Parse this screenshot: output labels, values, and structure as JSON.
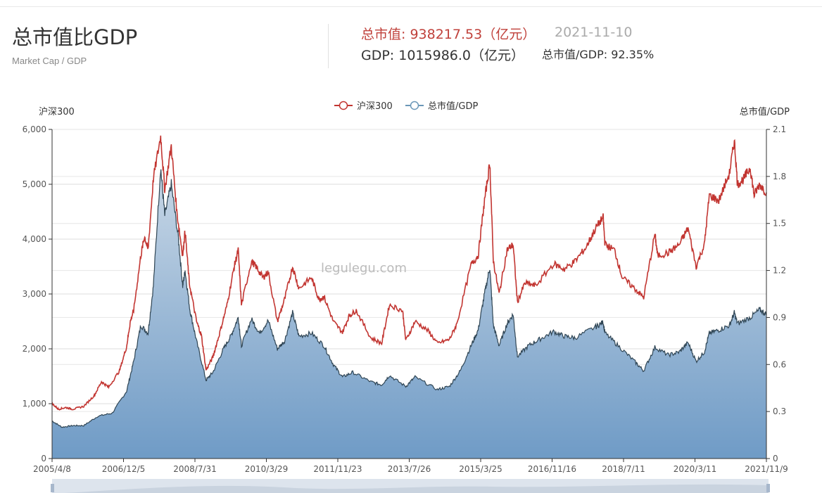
{
  "header": {
    "title": "总市值比GDP",
    "subtitle": "Market Cap / GDP",
    "market_cap": "总市值: 938217.53（亿元）",
    "date": "2021-11-10",
    "gdp": "GDP: 1015986.0（亿元）",
    "ratio": "总市值/GDP: 92.35%"
  },
  "watermark": "legulegu.com",
  "colors": {
    "hs300": "#c23531",
    "ratio_line": "#2f4554",
    "ratio_fill_top": "#c8d7e6",
    "ratio_fill_bottom": "#6f9bc6",
    "legend_ratio": "#6b97b8"
  },
  "chart_data": {
    "type": "line",
    "x_start": "2005-04-08",
    "x_end": "2021-11-09",
    "x_tick_labels": [
      "2005/4/8",
      "2006/12/5",
      "2008/7/31",
      "2010/3/29",
      "2011/11/23",
      "2013/7/26",
      "2015/3/25",
      "2016/11/16",
      "2018/7/11",
      "2020/3/11",
      "2021/11/9"
    ],
    "y_left": {
      "label": "沪深300",
      "min": 0,
      "max": 6000,
      "ticks": [
        "0",
        "1,000",
        "2,000",
        "3,000",
        "4,000",
        "5,000",
        "6,000"
      ]
    },
    "y_right": {
      "label": "总市值/GDP",
      "min": 0,
      "max": 2.1,
      "ticks": [
        "0",
        "0.3",
        "0.6",
        "0.9",
        "1.2",
        "1.5",
        "1.8",
        "2.1"
      ]
    },
    "grid": true,
    "legend_position": "top-center",
    "series": [
      {
        "name": "沪深300",
        "axis": "left",
        "style": "line",
        "points": [
          [
            "2005-04-08",
            1000
          ],
          [
            "2005-06-01",
            900
          ],
          [
            "2005-08-01",
            930
          ],
          [
            "2005-10-01",
            900
          ],
          [
            "2006-01-01",
            950
          ],
          [
            "2006-04-01",
            1150
          ],
          [
            "2006-06-01",
            1400
          ],
          [
            "2006-08-01",
            1300
          ],
          [
            "2006-11-01",
            1600
          ],
          [
            "2006-12-31",
            2040
          ],
          [
            "2007-02-01",
            2500
          ],
          [
            "2007-03-01",
            2700
          ],
          [
            "2007-05-01",
            3700
          ],
          [
            "2007-06-01",
            4050
          ],
          [
            "2007-07-01",
            3800
          ],
          [
            "2007-08-15",
            5100
          ],
          [
            "2007-10-16",
            5877
          ],
          [
            "2007-11-20",
            4900
          ],
          [
            "2008-01-14",
            5700
          ],
          [
            "2008-03-01",
            4500
          ],
          [
            "2008-04-20",
            3700
          ],
          [
            "2008-05-10",
            4150
          ],
          [
            "2008-06-15",
            3200
          ],
          [
            "2008-08-15",
            2500
          ],
          [
            "2008-09-25",
            2250
          ],
          [
            "2008-11-04",
            1610
          ],
          [
            "2009-01-01",
            1850
          ],
          [
            "2009-03-01",
            2300
          ],
          [
            "2009-05-01",
            2800
          ],
          [
            "2009-07-01",
            3500
          ],
          [
            "2009-08-04",
            3800
          ],
          [
            "2009-08-31",
            2800
          ],
          [
            "2009-11-24",
            3600
          ],
          [
            "2010-01-01",
            3500
          ],
          [
            "2010-03-01",
            3300
          ],
          [
            "2010-04-15",
            3400
          ],
          [
            "2010-07-02",
            2500
          ],
          [
            "2010-09-01",
            2900
          ],
          [
            "2010-11-08",
            3500
          ],
          [
            "2011-01-01",
            3100
          ],
          [
            "2011-04-18",
            3300
          ],
          [
            "2011-06-20",
            2900
          ],
          [
            "2011-08-01",
            2950
          ],
          [
            "2011-10-20",
            2500
          ],
          [
            "2012-01-05",
            2300
          ],
          [
            "2012-03-01",
            2600
          ],
          [
            "2012-05-01",
            2700
          ],
          [
            "2012-09-01",
            2200
          ],
          [
            "2012-12-03",
            2100
          ],
          [
            "2013-02-06",
            2800
          ],
          [
            "2013-05-29",
            2700
          ],
          [
            "2013-06-25",
            2150
          ],
          [
            "2013-09-12",
            2500
          ],
          [
            "2013-12-31",
            2330
          ],
          [
            "2014-03-20",
            2100
          ],
          [
            "2014-06-30",
            2170
          ],
          [
            "2014-09-01",
            2450
          ],
          [
            "2014-12-31",
            3530
          ],
          [
            "2015-03-01",
            3700
          ],
          [
            "2015-04-24",
            4700
          ],
          [
            "2015-06-08",
            5380
          ],
          [
            "2015-07-08",
            3600
          ],
          [
            "2015-08-26",
            3000
          ],
          [
            "2015-11-01",
            3800
          ],
          [
            "2015-12-23",
            3900
          ],
          [
            "2016-01-28",
            2850
          ],
          [
            "2016-04-01",
            3200
          ],
          [
            "2016-07-01",
            3150
          ],
          [
            "2016-11-29",
            3550
          ],
          [
            "2017-03-01",
            3450
          ],
          [
            "2017-06-01",
            3600
          ],
          [
            "2017-09-01",
            3850
          ],
          [
            "2017-11-22",
            4200
          ],
          [
            "2018-01-24",
            4400
          ],
          [
            "2018-02-09",
            3900
          ],
          [
            "2018-05-01",
            3800
          ],
          [
            "2018-07-05",
            3300
          ],
          [
            "2018-10-18",
            3100
          ],
          [
            "2019-01-03",
            2935
          ],
          [
            "2019-04-08",
            4100
          ],
          [
            "2019-05-01",
            3700
          ],
          [
            "2019-08-01",
            3750
          ],
          [
            "2019-11-01",
            3900
          ],
          [
            "2020-01-14",
            4200
          ],
          [
            "2020-03-23",
            3500
          ],
          [
            "2020-06-01",
            3900
          ],
          [
            "2020-07-13",
            4800
          ],
          [
            "2020-10-01",
            4700
          ],
          [
            "2020-12-31",
            5200
          ],
          [
            "2021-02-10",
            5800
          ],
          [
            "2021-03-09",
            5000
          ],
          [
            "2021-05-01",
            5100
          ],
          [
            "2021-06-25",
            5300
          ],
          [
            "2021-07-28",
            4800
          ],
          [
            "2021-09-13",
            5000
          ],
          [
            "2021-11-09",
            4850
          ]
        ]
      },
      {
        "name": "总市值/GDP",
        "axis": "right",
        "style": "area",
        "points": [
          [
            "2005-04-08",
            0.24
          ],
          [
            "2005-07-01",
            0.2
          ],
          [
            "2005-10-01",
            0.21
          ],
          [
            "2006-01-01",
            0.21
          ],
          [
            "2006-05-01",
            0.27
          ],
          [
            "2006-09-01",
            0.29
          ],
          [
            "2006-12-31",
            0.43
          ],
          [
            "2007-03-01",
            0.62
          ],
          [
            "2007-05-01",
            0.85
          ],
          [
            "2007-07-01",
            0.8
          ],
          [
            "2007-08-15",
            1.1
          ],
          [
            "2007-10-16",
            1.86
          ],
          [
            "2007-11-20",
            1.55
          ],
          [
            "2008-01-14",
            1.75
          ],
          [
            "2008-03-15",
            1.4
          ],
          [
            "2008-04-20",
            1.1
          ],
          [
            "2008-05-10",
            1.2
          ],
          [
            "2008-06-20",
            0.95
          ],
          [
            "2008-08-15",
            0.75
          ],
          [
            "2008-11-04",
            0.5
          ],
          [
            "2009-01-01",
            0.55
          ],
          [
            "2009-04-01",
            0.7
          ],
          [
            "2009-06-01",
            0.78
          ],
          [
            "2009-08-04",
            0.9
          ],
          [
            "2009-08-31",
            0.72
          ],
          [
            "2009-11-24",
            0.89
          ],
          [
            "2010-02-01",
            0.8
          ],
          [
            "2010-04-15",
            0.88
          ],
          [
            "2010-07-02",
            0.7
          ],
          [
            "2010-09-01",
            0.75
          ],
          [
            "2010-11-08",
            0.93
          ],
          [
            "2011-01-01",
            0.78
          ],
          [
            "2011-04-18",
            0.8
          ],
          [
            "2011-08-01",
            0.72
          ],
          [
            "2011-10-20",
            0.6
          ],
          [
            "2012-01-05",
            0.52
          ],
          [
            "2012-04-01",
            0.55
          ],
          [
            "2012-09-01",
            0.49
          ],
          [
            "2012-12-03",
            0.47
          ],
          [
            "2013-02-06",
            0.53
          ],
          [
            "2013-06-25",
            0.46
          ],
          [
            "2013-09-12",
            0.52
          ],
          [
            "2014-03-20",
            0.44
          ],
          [
            "2014-06-30",
            0.46
          ],
          [
            "2014-10-01",
            0.56
          ],
          [
            "2014-12-31",
            0.72
          ],
          [
            "2015-03-01",
            0.82
          ],
          [
            "2015-04-24",
            1.05
          ],
          [
            "2015-06-08",
            1.22
          ],
          [
            "2015-07-08",
            0.85
          ],
          [
            "2015-08-26",
            0.72
          ],
          [
            "2015-11-01",
            0.86
          ],
          [
            "2015-12-23",
            0.92
          ],
          [
            "2016-01-28",
            0.65
          ],
          [
            "2016-05-01",
            0.72
          ],
          [
            "2016-08-01",
            0.76
          ],
          [
            "2016-11-29",
            0.81
          ],
          [
            "2017-03-01",
            0.78
          ],
          [
            "2017-06-01",
            0.77
          ],
          [
            "2017-11-22",
            0.84
          ],
          [
            "2018-01-24",
            0.87
          ],
          [
            "2018-02-09",
            0.8
          ],
          [
            "2018-06-01",
            0.72
          ],
          [
            "2018-10-18",
            0.62
          ],
          [
            "2019-01-03",
            0.56
          ],
          [
            "2019-04-08",
            0.71
          ],
          [
            "2019-08-01",
            0.66
          ],
          [
            "2019-11-01",
            0.68
          ],
          [
            "2020-01-14",
            0.74
          ],
          [
            "2020-03-23",
            0.62
          ],
          [
            "2020-06-01",
            0.68
          ],
          [
            "2020-07-13",
            0.8
          ],
          [
            "2020-10-01",
            0.82
          ],
          [
            "2020-12-31",
            0.85
          ],
          [
            "2021-02-10",
            0.93
          ],
          [
            "2021-03-09",
            0.86
          ],
          [
            "2021-06-25",
            0.9
          ],
          [
            "2021-09-13",
            0.95
          ],
          [
            "2021-11-09",
            0.92
          ]
        ]
      }
    ]
  }
}
